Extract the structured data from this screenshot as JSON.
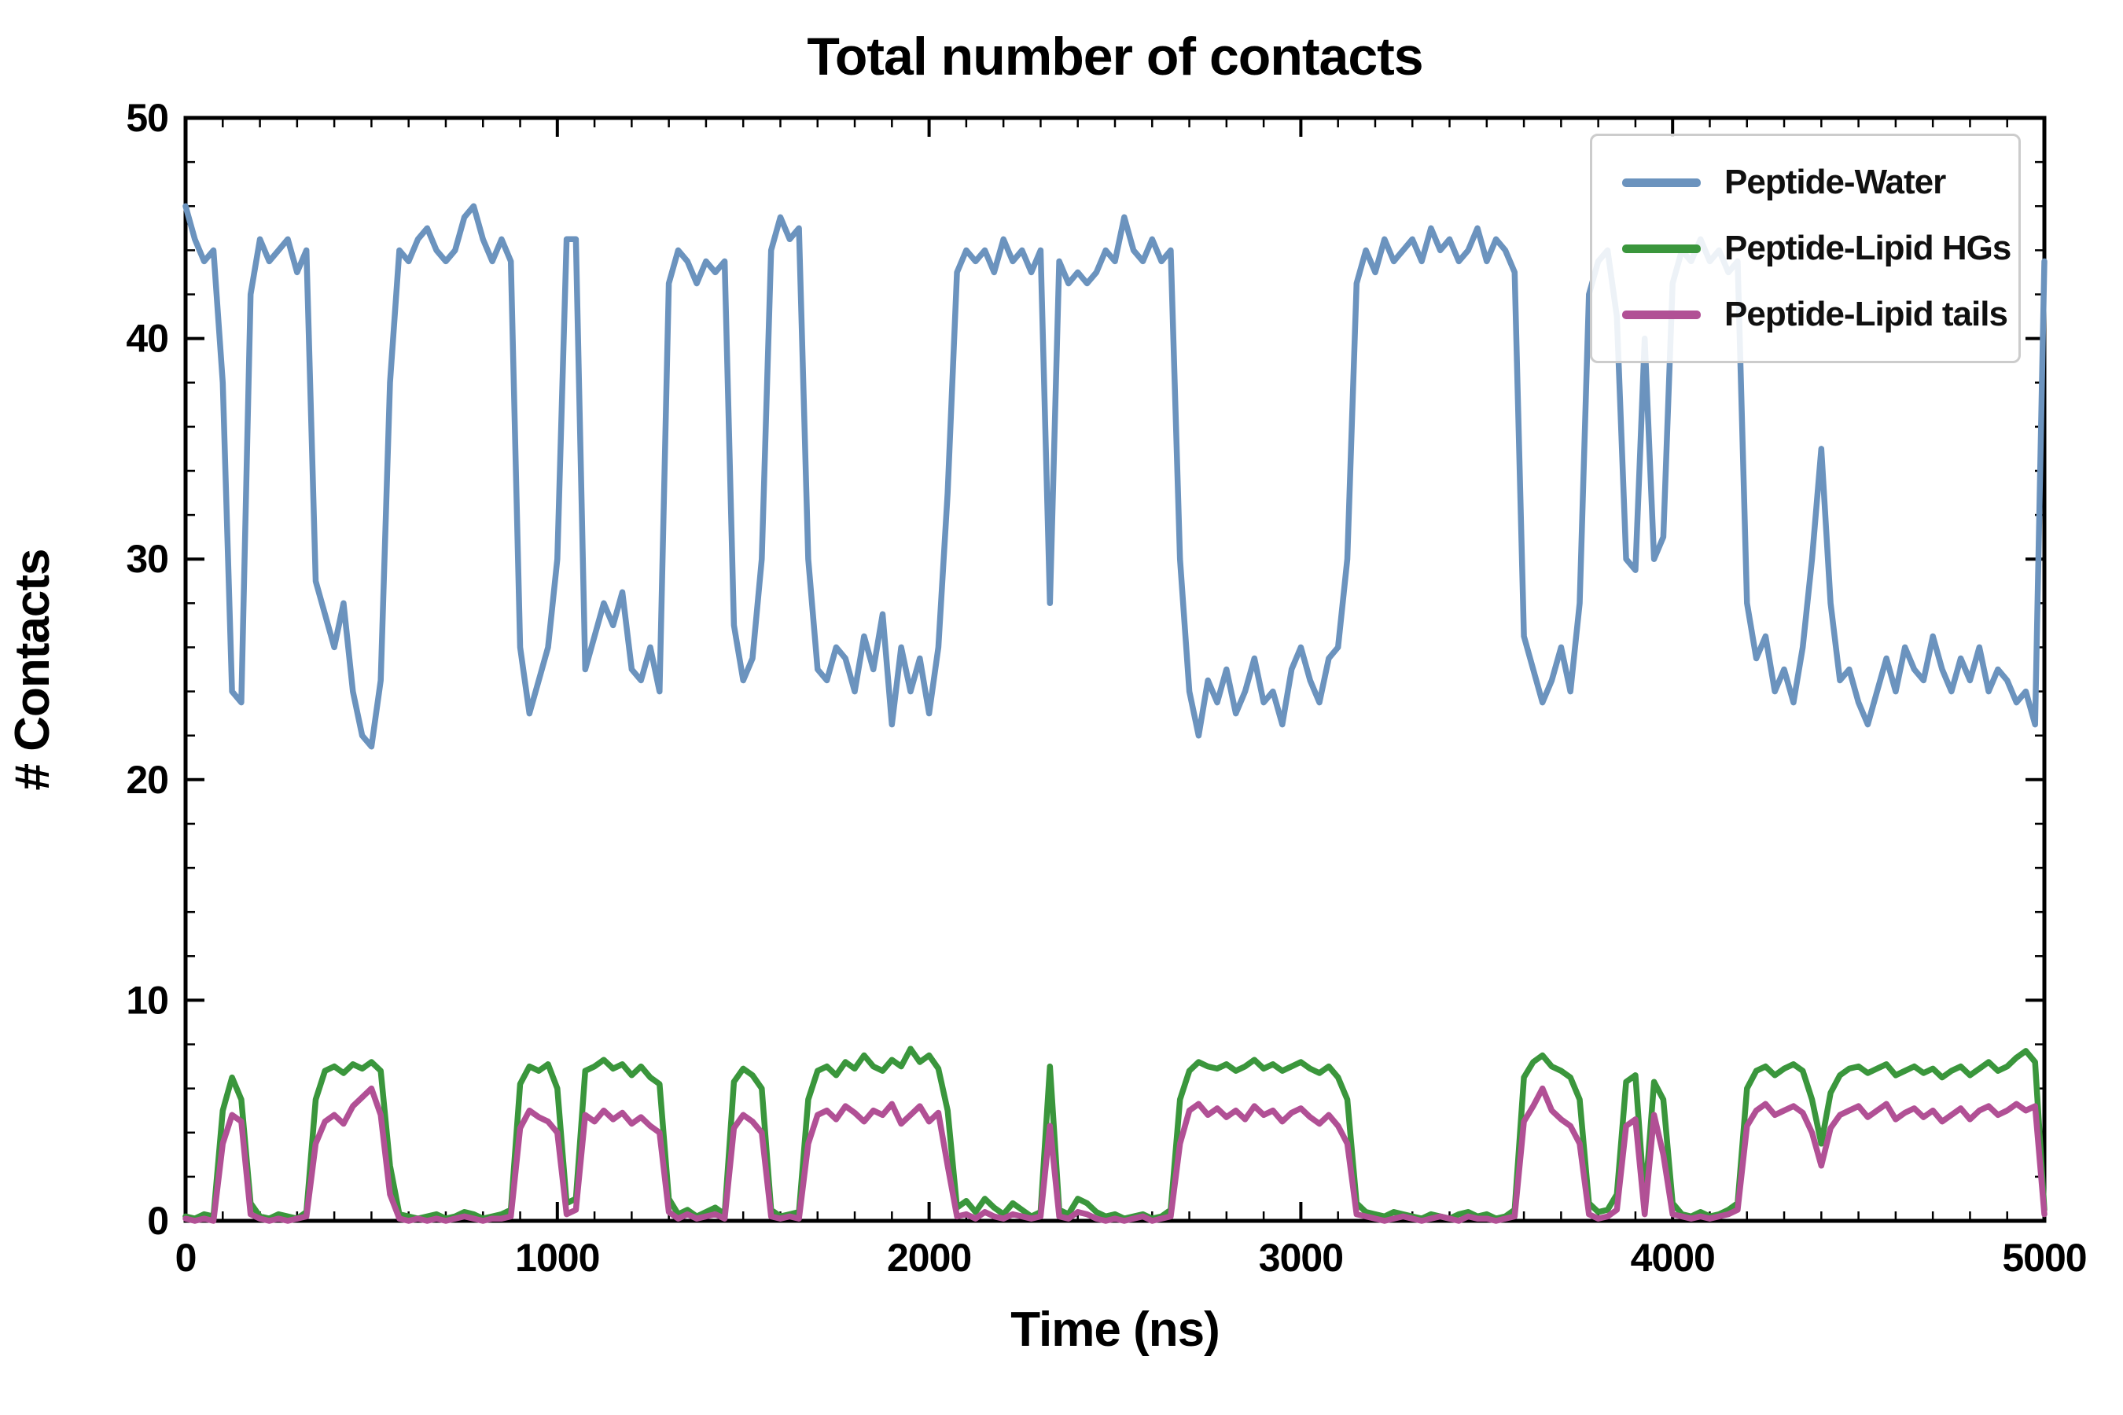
{
  "chart_data": {
    "type": "line",
    "title": "Total number of contacts",
    "xlabel": "Time (ns)",
    "ylabel": "# Contacts",
    "xlim": [
      0,
      5000
    ],
    "ylim": [
      0,
      50
    ],
    "x_ticks": [
      0,
      1000,
      2000,
      3000,
      4000,
      5000
    ],
    "y_ticks": [
      0,
      10,
      20,
      30,
      40,
      50
    ],
    "x_minor_step": 100,
    "y_minor_step": 2,
    "grid": false,
    "legend_position": "upper right",
    "x": [
      0,
      25,
      50,
      75,
      100,
      125,
      150,
      175,
      200,
      225,
      250,
      275,
      300,
      325,
      350,
      375,
      400,
      425,
      450,
      475,
      500,
      525,
      550,
      575,
      600,
      625,
      650,
      675,
      700,
      725,
      750,
      775,
      800,
      825,
      850,
      875,
      900,
      925,
      950,
      975,
      1000,
      1025,
      1050,
      1075,
      1100,
      1125,
      1150,
      1175,
      1200,
      1225,
      1250,
      1275,
      1300,
      1325,
      1350,
      1375,
      1400,
      1425,
      1450,
      1475,
      1500,
      1525,
      1550,
      1575,
      1600,
      1625,
      1650,
      1675,
      1700,
      1725,
      1750,
      1775,
      1800,
      1825,
      1850,
      1875,
      1900,
      1925,
      1950,
      1975,
      2000,
      2025,
      2050,
      2075,
      2100,
      2125,
      2150,
      2175,
      2200,
      2225,
      2250,
      2275,
      2300,
      2325,
      2350,
      2375,
      2400,
      2425,
      2450,
      2475,
      2500,
      2525,
      2550,
      2575,
      2600,
      2625,
      2650,
      2675,
      2700,
      2725,
      2750,
      2775,
      2800,
      2825,
      2850,
      2875,
      2900,
      2925,
      2950,
      2975,
      3000,
      3025,
      3050,
      3075,
      3100,
      3125,
      3150,
      3175,
      3200,
      3225,
      3250,
      3275,
      3300,
      3325,
      3350,
      3375,
      3400,
      3425,
      3450,
      3475,
      3500,
      3525,
      3550,
      3575,
      3600,
      3625,
      3650,
      3675,
      3700,
      3725,
      3750,
      3775,
      3800,
      3825,
      3850,
      3875,
      3900,
      3925,
      3950,
      3975,
      4000,
      4025,
      4050,
      4075,
      4100,
      4125,
      4150,
      4175,
      4200,
      4225,
      4250,
      4275,
      4300,
      4325,
      4350,
      4375,
      4400,
      4425,
      4450,
      4475,
      4500,
      4525,
      4550,
      4575,
      4600,
      4625,
      4650,
      4675,
      4700,
      4725,
      4750,
      4775,
      4800,
      4825,
      4850,
      4875,
      4900,
      4925,
      4950,
      4975,
      5000
    ],
    "series": [
      {
        "name": "Peptide-Water",
        "color": "#6b93be",
        "values": [
          46,
          44.5,
          43.5,
          44,
          38,
          24,
          23.5,
          42,
          44.5,
          43.5,
          44,
          44.5,
          43,
          44,
          29,
          27.5,
          26,
          28,
          24,
          22,
          21.5,
          24.5,
          38,
          44,
          43.5,
          44.5,
          45,
          44,
          43.5,
          44,
          45.5,
          46,
          44.5,
          43.5,
          44.5,
          43.5,
          26,
          23,
          24.5,
          26,
          30,
          44.5,
          44.5,
          25,
          26.5,
          28,
          27,
          28.5,
          25,
          24.5,
          26,
          24,
          42.5,
          44,
          43.5,
          42.5,
          43.5,
          43,
          43.5,
          27,
          24.5,
          25.5,
          30,
          44,
          45.5,
          44.5,
          45,
          30,
          25,
          24.5,
          26,
          25.5,
          24,
          26.5,
          25,
          27.5,
          22.5,
          26,
          24,
          25.5,
          23,
          26,
          33,
          43,
          44,
          43.5,
          44,
          43,
          44.5,
          43.5,
          44,
          43,
          44,
          28,
          43.5,
          42.5,
          43,
          42.5,
          43,
          44,
          43.5,
          45.5,
          44,
          43.5,
          44.5,
          43.5,
          44,
          30,
          24,
          22,
          24.5,
          23.5,
          25,
          23,
          24,
          25.5,
          23.5,
          24,
          22.5,
          25,
          26,
          24.5,
          23.5,
          25.5,
          26,
          30,
          42.5,
          44,
          43,
          44.5,
          43.5,
          44,
          44.5,
          43.5,
          45,
          44,
          44.5,
          43.5,
          44,
          45,
          43.5,
          44.5,
          44,
          43,
          26.5,
          25,
          23.5,
          24.5,
          26,
          24,
          28,
          42,
          43.5,
          44,
          41,
          30,
          29.5,
          40,
          30,
          31,
          42.5,
          44,
          43.5,
          44.5,
          43.5,
          44,
          43,
          43.5,
          28,
          25.5,
          26.5,
          24,
          25,
          23.5,
          26,
          30,
          35,
          28,
          24.5,
          25,
          23.5,
          22.5,
          24,
          25.5,
          24,
          26,
          25,
          24.5,
          26.5,
          25,
          24,
          25.5,
          24.5,
          26,
          24,
          25,
          24.5,
          23.5,
          24,
          22.5,
          43.5
        ]
      },
      {
        "name": "Peptide-Lipid HGs",
        "color": "#3a963c",
        "values": [
          0.2,
          0.1,
          0.3,
          0.2,
          5,
          6.5,
          5.5,
          0.8,
          0.2,
          0.1,
          0.3,
          0.2,
          0.1,
          0.4,
          5.5,
          6.8,
          7,
          6.7,
          7.1,
          6.9,
          7.2,
          6.8,
          2.5,
          0.3,
          0.2,
          0.1,
          0.2,
          0.3,
          0.1,
          0.2,
          0.4,
          0.3,
          0.1,
          0.2,
          0.3,
          0.5,
          6.2,
          7,
          6.8,
          7.1,
          6,
          0.8,
          1,
          6.8,
          7,
          7.3,
          6.9,
          7.1,
          6.6,
          7,
          6.5,
          6.2,
          1,
          0.3,
          0.5,
          0.2,
          0.4,
          0.6,
          0.3,
          6.3,
          6.9,
          6.6,
          6,
          0.5,
          0.2,
          0.3,
          0.4,
          5.5,
          6.8,
          7,
          6.6,
          7.2,
          6.9,
          7.5,
          7,
          6.8,
          7.3,
          7,
          7.8,
          7.2,
          7.5,
          6.9,
          5,
          0.6,
          0.9,
          0.4,
          1,
          0.6,
          0.3,
          0.8,
          0.5,
          0.2,
          0.4,
          7,
          0.5,
          0.3,
          1,
          0.8,
          0.4,
          0.2,
          0.3,
          0.1,
          0.2,
          0.3,
          0.1,
          0.2,
          0.5,
          5.5,
          6.8,
          7.2,
          7,
          6.9,
          7.1,
          6.8,
          7,
          7.3,
          6.9,
          7.1,
          6.8,
          7,
          7.2,
          6.9,
          6.7,
          7,
          6.5,
          5.5,
          0.8,
          0.4,
          0.3,
          0.2,
          0.4,
          0.3,
          0.2,
          0.1,
          0.3,
          0.2,
          0.1,
          0.3,
          0.4,
          0.2,
          0.3,
          0.1,
          0.2,
          0.5,
          6.5,
          7.2,
          7.5,
          7,
          6.8,
          6.5,
          5.5,
          0.8,
          0.4,
          0.5,
          1.2,
          6.3,
          6.6,
          0.8,
          6.3,
          5.5,
          0.8,
          0.3,
          0.2,
          0.4,
          0.2,
          0.3,
          0.5,
          0.8,
          6,
          6.8,
          7,
          6.6,
          6.9,
          7.1,
          6.8,
          5.5,
          3.5,
          5.8,
          6.6,
          6.9,
          7,
          6.7,
          6.9,
          7.1,
          6.6,
          6.8,
          7,
          6.7,
          6.9,
          6.5,
          6.8,
          7,
          6.6,
          6.9,
          7.2,
          6.8,
          7,
          7.4,
          7.7,
          7.2,
          0.5
        ]
      },
      {
        "name": "Peptide-Lipid tails",
        "color": "#b15095",
        "values": [
          0.1,
          0,
          0.1,
          0,
          3.5,
          4.8,
          4.5,
          0.3,
          0.1,
          0,
          0.1,
          0,
          0.1,
          0.2,
          3.5,
          4.5,
          4.8,
          4.4,
          5.2,
          5.6,
          6,
          4.8,
          1.2,
          0.1,
          0,
          0.1,
          0,
          0.1,
          0,
          0.1,
          0.2,
          0.1,
          0,
          0.1,
          0.1,
          0.2,
          4.2,
          5,
          4.7,
          4.5,
          4,
          0.3,
          0.5,
          4.8,
          4.5,
          5,
          4.6,
          4.9,
          4.4,
          4.7,
          4.3,
          4,
          0.4,
          0.1,
          0.3,
          0.1,
          0.2,
          0.3,
          0.1,
          4.2,
          4.8,
          4.5,
          4,
          0.2,
          0.1,
          0.2,
          0.1,
          3.5,
          4.8,
          5,
          4.6,
          5.2,
          4.9,
          4.5,
          5,
          4.8,
          5.3,
          4.4,
          4.8,
          5.2,
          4.5,
          4.9,
          2.5,
          0.2,
          0.3,
          0.1,
          0.4,
          0.2,
          0.1,
          0.3,
          0.2,
          0.1,
          0.2,
          4.3,
          0.2,
          0.1,
          0.4,
          0.3,
          0.1,
          0,
          0.1,
          0,
          0.1,
          0.2,
          0,
          0.1,
          0.2,
          3.5,
          5,
          5.3,
          4.8,
          5.1,
          4.7,
          5,
          4.6,
          5.2,
          4.8,
          5,
          4.5,
          4.9,
          5.1,
          4.7,
          4.4,
          4.8,
          4.3,
          3.5,
          0.3,
          0.2,
          0.1,
          0,
          0.1,
          0.2,
          0.1,
          0,
          0.1,
          0.2,
          0.1,
          0,
          0.2,
          0.1,
          0.1,
          0,
          0.1,
          0.2,
          4.5,
          5.2,
          6,
          5,
          4.6,
          4.3,
          3.5,
          0.3,
          0.1,
          0.2,
          0.5,
          4.3,
          4.6,
          0.3,
          4.8,
          3,
          0.3,
          0.2,
          0.1,
          0.2,
          0.1,
          0.2,
          0.3,
          0.5,
          4.3,
          5,
          5.3,
          4.8,
          5,
          5.2,
          4.9,
          4,
          2.5,
          4.2,
          4.8,
          5,
          5.2,
          4.7,
          5,
          5.3,
          4.6,
          4.9,
          5.1,
          4.7,
          5,
          4.5,
          4.8,
          5.1,
          4.6,
          5,
          5.2,
          4.8,
          5,
          5.3,
          5,
          5.2,
          0.3
        ]
      }
    ]
  }
}
